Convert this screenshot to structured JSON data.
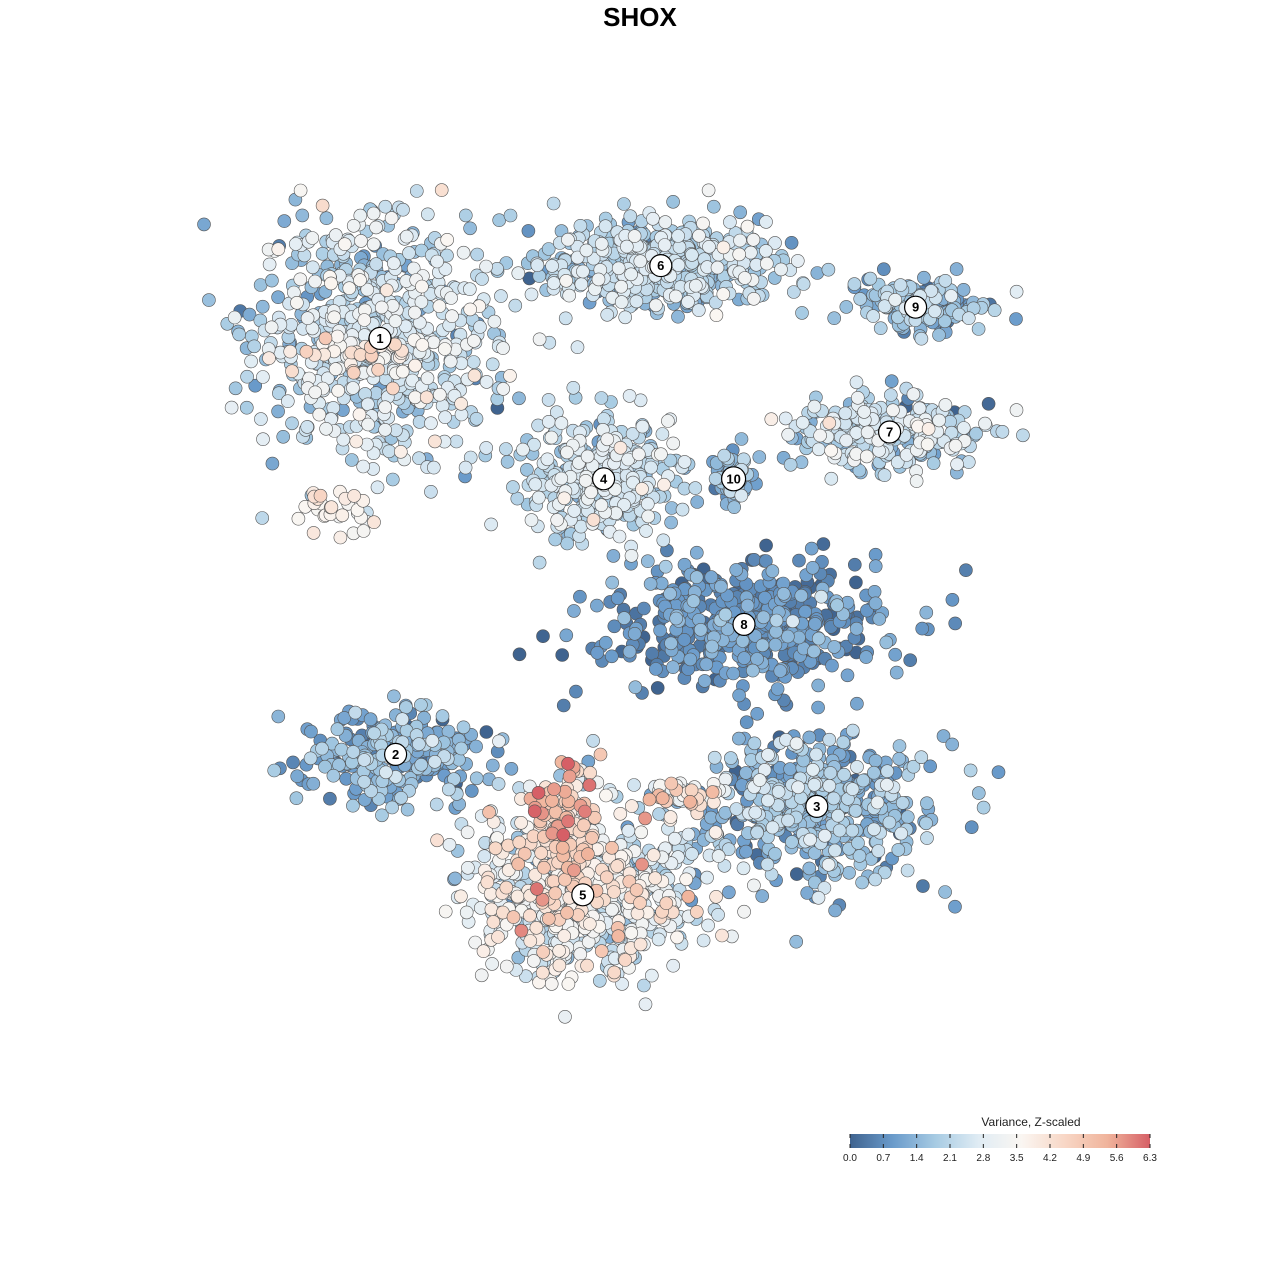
{
  "chart_data": {
    "type": "scatter",
    "title": "SHOX",
    "xlabel": "",
    "ylabel": "",
    "grid": false,
    "legend": {
      "title": "Variance, Z-scaled",
      "placement": "bottom-right",
      "ticks": [
        "0.0",
        "0.7",
        "1.4",
        "2.1",
        "2.8",
        "3.5",
        "4.2",
        "4.9",
        "5.6",
        "6.3"
      ],
      "range": [
        0.0,
        6.3
      ],
      "colors": [
        "#3f638f",
        "#6a9bcb",
        "#a7cbe3",
        "#e0ecf4",
        "#faf6f2",
        "#f8d7c6",
        "#f0b49c",
        "#d65f66"
      ]
    },
    "clusters": [
      {
        "label": "1",
        "cx": -5.0,
        "cy": 5.8,
        "sx": 2.3,
        "sy": 2.3,
        "n": 720,
        "mean": 2.3,
        "spread": 0.7
      },
      {
        "label": "2",
        "cx": -4.7,
        "cy": -2.2,
        "sx": 1.9,
        "sy": 0.9,
        "n": 260,
        "mean": 1.2,
        "spread": 0.6
      },
      {
        "label": "3",
        "cx": 3.4,
        "cy": -3.2,
        "sx": 2.1,
        "sy": 1.3,
        "n": 540,
        "mean": 1.4,
        "spread": 0.7
      },
      {
        "label": "4",
        "cx": -0.7,
        "cy": 3.1,
        "sx": 1.4,
        "sy": 1.2,
        "n": 380,
        "mean": 2.2,
        "spread": 0.6
      },
      {
        "label": "5",
        "cx": -1.1,
        "cy": -4.9,
        "sx": 2.2,
        "sy": 1.5,
        "n": 760,
        "mean": 2.9,
        "spread": 1.0
      },
      {
        "label": "6",
        "cx": 0.4,
        "cy": 7.2,
        "sx": 2.3,
        "sy": 0.8,
        "n": 620,
        "mean": 1.9,
        "spread": 0.7
      },
      {
        "label": "7",
        "cx": 4.8,
        "cy": 4.0,
        "sx": 1.9,
        "sy": 0.7,
        "n": 300,
        "mean": 2.2,
        "spread": 0.7
      },
      {
        "label": "8",
        "cx": 2.0,
        "cy": 0.3,
        "sx": 2.6,
        "sy": 1.2,
        "n": 520,
        "mean": 0.7,
        "spread": 0.5
      },
      {
        "label": "9",
        "cx": 5.3,
        "cy": 6.4,
        "sx": 1.3,
        "sy": 0.5,
        "n": 160,
        "mean": 1.5,
        "spread": 0.6
      },
      {
        "label": "10",
        "cx": 1.8,
        "cy": 3.1,
        "sx": 0.4,
        "sy": 0.5,
        "n": 70,
        "mean": 1.3,
        "spread": 0.5
      }
    ],
    "hotspots": [
      {
        "cx": -1.5,
        "cy": -3.6,
        "sx": 0.7,
        "sy": 1.0,
        "n": 130,
        "mean": 4.4,
        "spread": 0.8
      },
      {
        "cx": 0.9,
        "cy": -3.0,
        "sx": 0.8,
        "sy": 0.3,
        "n": 40,
        "mean": 4.0,
        "spread": 0.9
      },
      {
        "cx": -5.3,
        "cy": 5.5,
        "sx": 1.0,
        "sy": 0.4,
        "n": 30,
        "mean": 4.0,
        "spread": 0.5
      },
      {
        "cx": -5.8,
        "cy": 2.5,
        "sx": 0.6,
        "sy": 0.5,
        "n": 30,
        "mean": 3.8,
        "spread": 0.4
      }
    ]
  }
}
